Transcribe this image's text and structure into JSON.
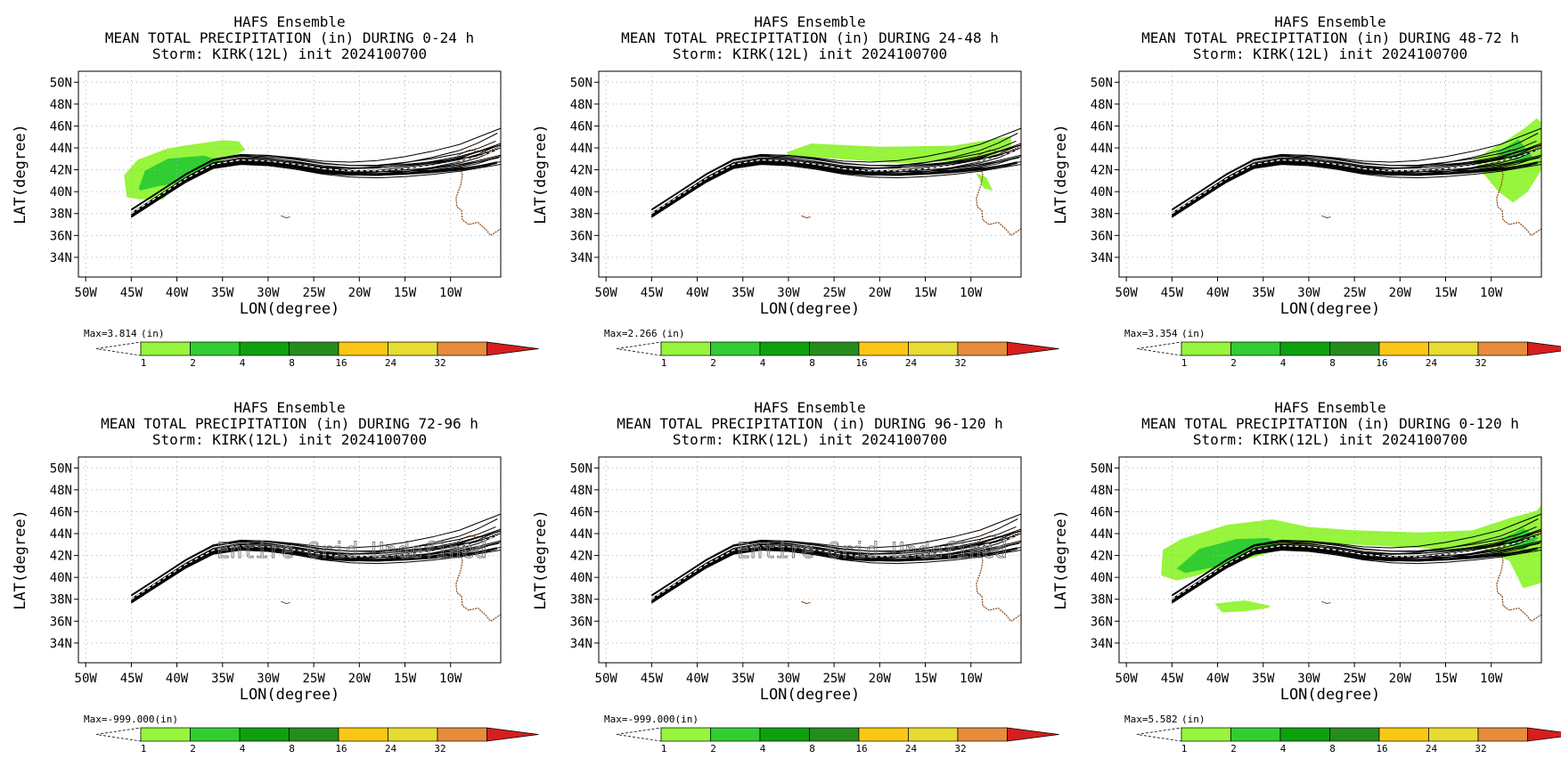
{
  "panels": [
    {
      "titles": [
        "HAFS Ensemble",
        "MEAN TOTAL PRECIPITATION (in) DURING  0-24 h",
        "Storm: KIRK(12L) init 2024100700"
      ],
      "max_label": "Max=3.814",
      "max_unit": "(in)",
      "message": "",
      "precip": [
        {
          "level": 1,
          "lon": [
            -45.5,
            -45.8,
            -44.3,
            -41.2,
            -39.3,
            -35,
            -33.2,
            -32.5,
            -34,
            -36.6,
            -38.3,
            -40.6,
            -41.5,
            -44.2
          ],
          "lat": [
            39.5,
            41.5,
            42.9,
            43.9,
            44.2,
            44.7,
            44.6,
            43.8,
            43.2,
            42.4,
            41.8,
            40.2,
            39.3,
            39.3
          ]
        },
        {
          "level": 2,
          "lon": [
            -44.2,
            -43.5,
            -41,
            -37,
            -35,
            -36.5,
            -39,
            -42,
            -44
          ],
          "lat": [
            40.3,
            41.9,
            43,
            43.3,
            42.7,
            41.9,
            40.9,
            40.5,
            40.1
          ]
        }
      ]
    },
    {
      "titles": [
        "HAFS Ensemble",
        "MEAN TOTAL PRECIPITATION (in) DURING 24-48 h",
        "Storm: KIRK(12L) init 2024100700"
      ],
      "max_label": "Max=2.266",
      "max_unit": "(in)",
      "message": "",
      "precip": [
        {
          "level": 1,
          "lon": [
            -30.2,
            -27.5,
            -20,
            -12,
            -7.5,
            -5.6,
            -5.6,
            -8,
            -12,
            -18,
            -26,
            -30
          ],
          "lat": [
            43.6,
            44.4,
            44.1,
            44.2,
            44.8,
            45.1,
            44.2,
            43.1,
            42.8,
            42.6,
            43.1,
            43.3
          ]
        },
        {
          "level": 1,
          "lon": [
            -9.4,
            -8.3,
            -7.6,
            -8.6
          ],
          "lat": [
            41.7,
            41.3,
            40.1,
            40.3
          ]
        }
      ]
    },
    {
      "titles": [
        "HAFS Ensemble",
        "MEAN TOTAL PRECIPITATION (in) DURING 48-72 h",
        "Storm: KIRK(12L) init 2024100700"
      ],
      "max_label": "Max=3.354",
      "max_unit": "(in)",
      "message": "",
      "precip": [
        {
          "level": 1,
          "lon": [
            -12,
            -8.5,
            -6.5,
            -5,
            -4.5,
            -4.5,
            -6,
            -7.6,
            -9.2,
            -10.8
          ],
          "lat": [
            42.9,
            44.6,
            45.7,
            46.7,
            46.3,
            42,
            40,
            39,
            40,
            41.6
          ]
        },
        {
          "level": 2,
          "lon": [
            -9.5,
            -7,
            -5.5,
            -6.8
          ],
          "lat": [
            43.5,
            44.8,
            43.2,
            42.6
          ]
        }
      ]
    },
    {
      "titles": [
        "HAFS Ensemble",
        "MEAN TOTAL PRECIPITATION (in) DURING 72-96 h",
        "Storm: KIRK(12L) init 2024100700"
      ],
      "max_label": "Max=-999.000(in)",
      "max_unit": "",
      "message": "Entire Grid Undefined",
      "precip": []
    },
    {
      "titles": [
        "HAFS Ensemble",
        "MEAN TOTAL PRECIPITATION (in) DURING 96-120 h",
        "Storm: KIRK(12L) init 2024100700"
      ],
      "max_label": "Max=-999.000(in)",
      "max_unit": "",
      "message": "Entire Grid Undefined",
      "precip": []
    },
    {
      "titles": [
        "HAFS Ensemble",
        "MEAN TOTAL PRECIPITATION (in) DURING 0-120 h",
        "Storm: KIRK(12L) init 2024100700"
      ],
      "max_label": "Max=5.582",
      "max_unit": "(in)",
      "message": "",
      "precip": [
        {
          "level": 1,
          "lon": [
            -46.2,
            -46,
            -44,
            -39,
            -34,
            -30,
            -25,
            -18,
            -12,
            -8,
            -5,
            -4.5,
            -4.5,
            -6.5,
            -8,
            -11,
            -16,
            -25,
            -31,
            -38,
            -42.5,
            -44.5
          ],
          "lat": [
            40.2,
            42.5,
            43.5,
            44.8,
            45.3,
            44.6,
            44.3,
            44.1,
            44.3,
            45.4,
            46.1,
            46.6,
            39.5,
            39,
            41.5,
            42.6,
            42.6,
            43,
            43,
            41.4,
            40.1,
            39.7
          ]
        },
        {
          "level": 1,
          "lon": [
            -40.3,
            -37,
            -34.2,
            -34.5,
            -37,
            -39.5
          ],
          "lat": [
            37.6,
            37.9,
            37.4,
            37.2,
            36.9,
            36.8
          ]
        },
        {
          "level": 2,
          "lon": [
            -44.5,
            -42,
            -38,
            -34.5,
            -33,
            -35.5,
            -40,
            -43.5
          ],
          "lat": [
            40.8,
            42.6,
            43.5,
            43.6,
            43,
            42.1,
            41,
            40.4
          ]
        },
        {
          "level": 2,
          "lon": [
            -9,
            -6.5,
            -4.8,
            -6.5
          ],
          "lat": [
            43.4,
            44.5,
            43.6,
            42.4
          ]
        }
      ]
    }
  ],
  "axes": {
    "xlabel": "LON(degree)",
    "ylabel": "LAT(degree)",
    "xlim": [
      -50.8,
      -4.5
    ],
    "ylim": [
      32.2,
      51.0
    ],
    "xticks": [
      -50,
      -45,
      -40,
      -35,
      -30,
      -25,
      -20,
      -15,
      -10
    ],
    "xtick_labels": [
      "50W",
      "45W",
      "40W",
      "35W",
      "30W",
      "25W",
      "20W",
      "15W",
      "10W"
    ],
    "yticks": [
      34,
      36,
      38,
      40,
      42,
      44,
      46,
      48,
      50
    ],
    "ytick_labels": [
      "34N",
      "36N",
      "38N",
      "40N",
      "42N",
      "44N",
      "46N",
      "48N",
      "50N"
    ],
    "grid": true
  },
  "colorbar": {
    "levels": [
      "1",
      "2",
      "4",
      "8",
      "16",
      "24",
      "32"
    ],
    "colors": [
      "#96f53c",
      "#32cd32",
      "#0fa00f",
      "#278c1e",
      "#fac814",
      "#e6dc32",
      "#e68c3c",
      "#d71e1e"
    ]
  },
  "tracks": {
    "color": "#000000",
    "members": 21,
    "mean_lon": [
      -45,
      -42,
      -39,
      -36,
      -33,
      -30,
      -27,
      -24,
      -21,
      -18,
      -15,
      -12,
      -9,
      -7,
      -5
    ],
    "mean_lat": [
      38.0,
      39.6,
      41.2,
      42.5,
      42.9,
      42.8,
      42.5,
      42.1,
      41.9,
      41.9,
      42.1,
      42.4,
      42.8,
      43.2,
      43.8
    ]
  },
  "coast_color": "#8b4513",
  "chart_data": [
    {
      "type": "map",
      "title": "MEAN TOTAL PRECIPITATION (in) DURING  0-24 h",
      "xlabel": "LON(degree)",
      "ylabel": "LAT(degree)",
      "max": 3.814,
      "units": "in"
    },
    {
      "type": "map",
      "title": "MEAN TOTAL PRECIPITATION (in) DURING 24-48 h",
      "xlabel": "LON(degree)",
      "ylabel": "LAT(degree)",
      "max": 2.266,
      "units": "in"
    },
    {
      "type": "map",
      "title": "MEAN TOTAL PRECIPITATION (in) DURING 48-72 h",
      "xlabel": "LON(degree)",
      "ylabel": "LAT(degree)",
      "max": 3.354,
      "units": "in"
    },
    {
      "type": "map",
      "title": "MEAN TOTAL PRECIPITATION (in) DURING 72-96 h",
      "xlabel": "LON(degree)",
      "ylabel": "LAT(degree)",
      "max": -999.0,
      "units": "in"
    },
    {
      "type": "map",
      "title": "MEAN TOTAL PRECIPITATION (in) DURING 96-120 h",
      "xlabel": "LON(degree)",
      "ylabel": "LAT(degree)",
      "max": -999.0,
      "units": "in"
    },
    {
      "type": "map",
      "title": "MEAN TOTAL PRECIPITATION (in) DURING 0-120 h",
      "xlabel": "LON(degree)",
      "ylabel": "LAT(degree)",
      "max": 5.582,
      "units": "in"
    }
  ]
}
